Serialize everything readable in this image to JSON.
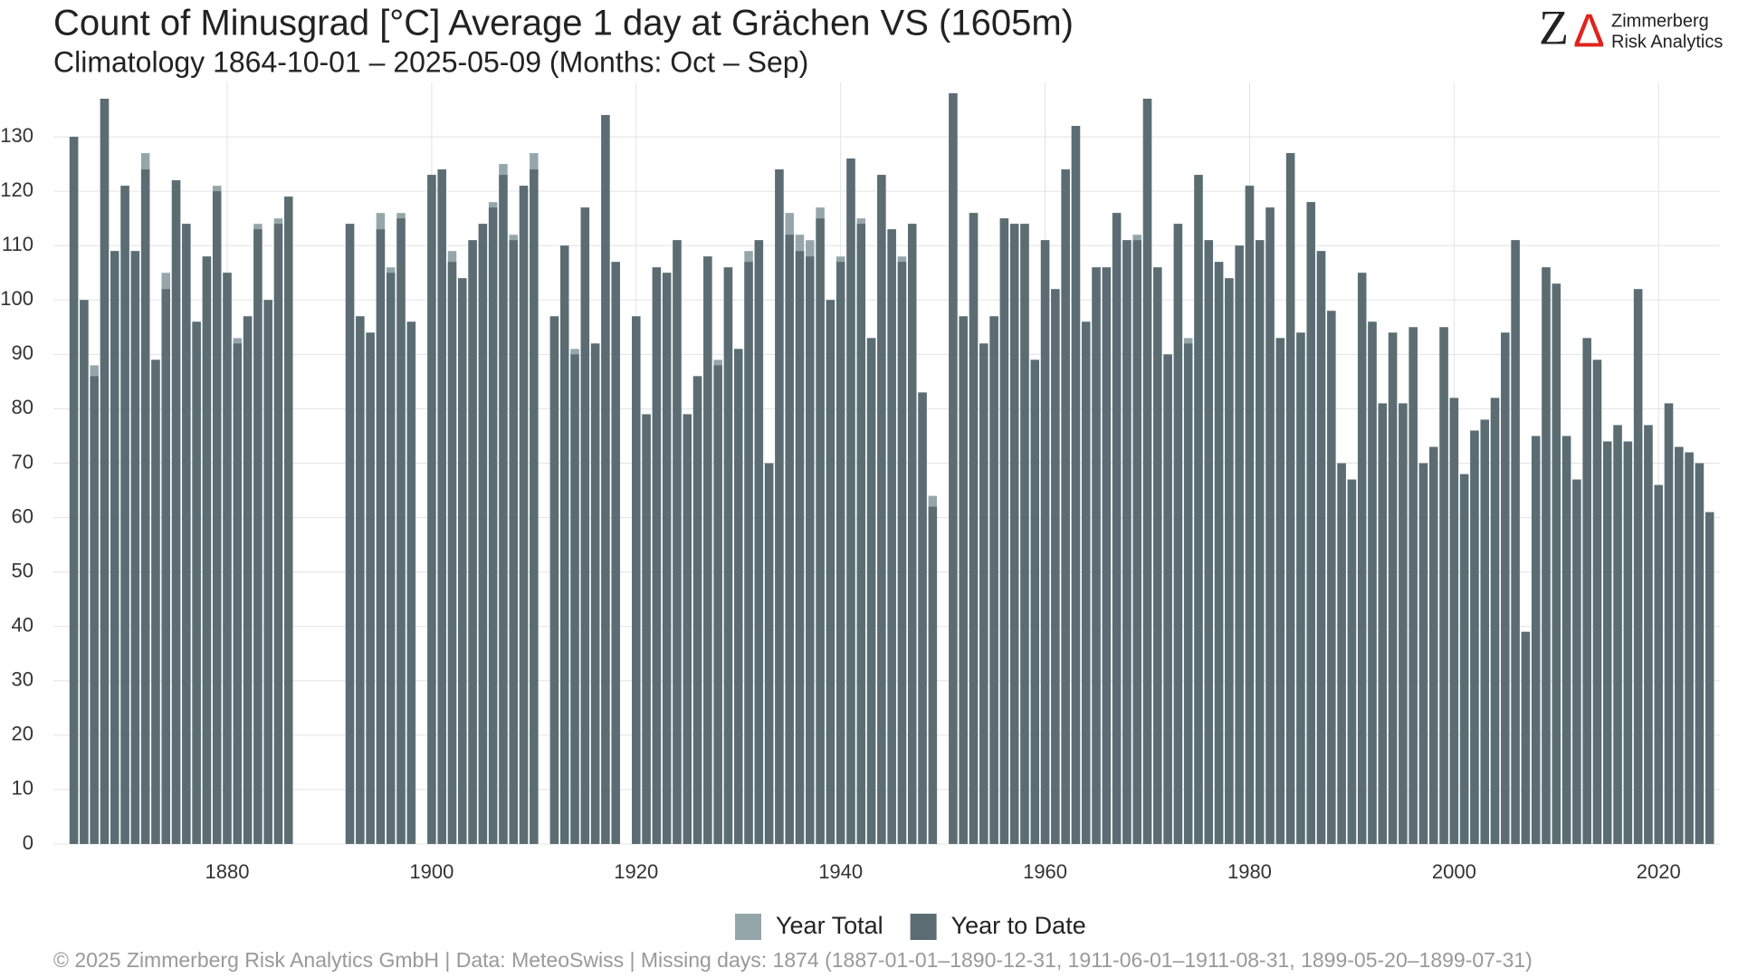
{
  "chart_data": {
    "type": "bar",
    "title": "Count of Minusgrad [°C] Average 1 day at Grächen  VS (1605m)",
    "subtitle": "Climatology 1864-10-01 – 2025-05-09 (Months: Oct – Sep)",
    "footer": "©  2025 Zimmerberg Risk Analytics GmbH | Data: MeteoSwiss | Missing days: 1874 (1887-01-01–1890-12-31, 1911-06-01–1911-08-31, 1899-05-20–1899-07-31)",
    "logo": {
      "letters": [
        "Z",
        "Δ"
      ],
      "name": [
        "Zimmerberg",
        "Risk Analytics"
      ]
    },
    "x": [
      1865,
      1866,
      1867,
      1868,
      1869,
      1870,
      1871,
      1872,
      1873,
      1874,
      1875,
      1876,
      1877,
      1878,
      1879,
      1880,
      1881,
      1882,
      1883,
      1884,
      1885,
      1886,
      1887,
      1888,
      1889,
      1890,
      1891,
      1892,
      1893,
      1894,
      1895,
      1896,
      1897,
      1898,
      1899,
      1900,
      1901,
      1902,
      1903,
      1904,
      1905,
      1906,
      1907,
      1908,
      1909,
      1910,
      1911,
      1912,
      1913,
      1914,
      1915,
      1916,
      1917,
      1918,
      1919,
      1920,
      1921,
      1922,
      1923,
      1924,
      1925,
      1926,
      1927,
      1928,
      1929,
      1930,
      1931,
      1932,
      1933,
      1934,
      1935,
      1936,
      1937,
      1938,
      1939,
      1940,
      1941,
      1942,
      1943,
      1944,
      1945,
      1946,
      1947,
      1948,
      1949,
      1950,
      1951,
      1952,
      1953,
      1954,
      1955,
      1956,
      1957,
      1958,
      1959,
      1960,
      1961,
      1962,
      1963,
      1964,
      1965,
      1966,
      1967,
      1968,
      1969,
      1970,
      1971,
      1972,
      1973,
      1974,
      1975,
      1976,
      1977,
      1978,
      1979,
      1980,
      1981,
      1982,
      1983,
      1984,
      1985,
      1986,
      1987,
      1988,
      1989,
      1990,
      1991,
      1992,
      1993,
      1994,
      1995,
      1996,
      1997,
      1998,
      1999,
      2000,
      2001,
      2002,
      2003,
      2004,
      2005,
      2006,
      2007,
      2008,
      2009,
      2010,
      2011,
      2012,
      2013,
      2014,
      2015,
      2016,
      2017,
      2018,
      2019,
      2020,
      2021,
      2022,
      2023,
      2024,
      2025
    ],
    "series": [
      {
        "name": "Year Total",
        "color": "#95a6ab",
        "values": [
          130,
          100,
          88,
          137,
          109,
          121,
          109,
          127,
          89,
          105,
          122,
          114,
          96,
          108,
          121,
          105,
          93,
          97,
          114,
          100,
          115,
          119,
          null,
          null,
          null,
          null,
          null,
          114,
          97,
          94,
          116,
          106,
          116,
          96,
          null,
          123,
          124,
          109,
          104,
          111,
          114,
          118,
          125,
          112,
          121,
          127,
          null,
          97,
          110,
          91,
          117,
          92,
          134,
          107,
          null,
          97,
          79,
          106,
          105,
          111,
          79,
          86,
          108,
          89,
          106,
          91,
          109,
          111,
          70,
          124,
          116,
          112,
          111,
          117,
          100,
          108,
          126,
          115,
          93,
          123,
          113,
          108,
          114,
          83,
          64,
          null,
          138,
          97,
          116,
          92,
          97,
          115,
          114,
          114,
          89,
          111,
          102,
          124,
          132,
          96,
          106,
          106,
          116,
          111,
          112,
          137,
          106,
          90,
          114,
          93,
          123,
          111,
          107,
          104,
          110,
          121,
          111,
          117,
          93,
          127,
          94,
          118,
          109,
          98,
          70,
          67,
          105,
          96,
          81,
          94,
          81,
          95,
          70,
          73,
          95,
          82,
          68,
          76,
          78,
          82,
          94,
          111,
          39,
          75,
          106,
          103,
          75,
          67,
          93,
          89,
          74,
          77,
          74,
          102,
          77,
          66,
          81,
          73,
          72,
          70,
          61
        ]
      },
      {
        "name": "Year to Date",
        "color": "#5b6d72",
        "values": [
          130,
          100,
          86,
          137,
          109,
          121,
          109,
          124,
          89,
          102,
          122,
          114,
          96,
          108,
          120,
          105,
          92,
          97,
          113,
          100,
          114,
          119,
          null,
          null,
          null,
          null,
          null,
          114,
          97,
          94,
          113,
          105,
          115,
          96,
          null,
          123,
          124,
          107,
          104,
          111,
          114,
          117,
          123,
          111,
          121,
          124,
          null,
          97,
          110,
          90,
          117,
          92,
          134,
          107,
          null,
          97,
          79,
          106,
          105,
          111,
          79,
          86,
          108,
          88,
          106,
          91,
          107,
          111,
          70,
          124,
          112,
          109,
          108,
          115,
          100,
          107,
          126,
          114,
          93,
          123,
          113,
          107,
          114,
          83,
          62,
          null,
          138,
          97,
          116,
          92,
          97,
          115,
          114,
          114,
          89,
          111,
          102,
          124,
          132,
          96,
          106,
          106,
          116,
          111,
          111,
          137,
          106,
          90,
          114,
          92,
          123,
          111,
          107,
          104,
          110,
          121,
          111,
          117,
          93,
          127,
          94,
          118,
          109,
          98,
          70,
          67,
          105,
          96,
          81,
          94,
          81,
          95,
          70,
          73,
          95,
          82,
          68,
          76,
          78,
          82,
          94,
          111,
          39,
          75,
          106,
          103,
          75,
          67,
          93,
          89,
          74,
          77,
          74,
          102,
          77,
          66,
          81,
          73,
          72,
          70,
          61
        ]
      }
    ],
    "xlim": [
      1863,
      2026
    ],
    "xticks": [
      1880,
      1900,
      1920,
      1940,
      1960,
      1980,
      2000,
      2020
    ],
    "ylim": [
      0,
      140
    ],
    "yticks": [
      0,
      10,
      20,
      30,
      40,
      50,
      60,
      70,
      80,
      90,
      100,
      110,
      120,
      130
    ],
    "grid": true,
    "legend": "bottom"
  }
}
